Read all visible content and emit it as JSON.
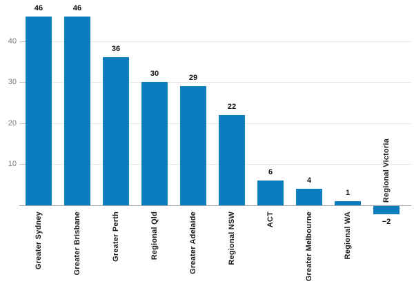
{
  "chart_data": {
    "type": "bar",
    "categories": [
      "Greater Sydney",
      "Greater Brisbane",
      "Greater Perth",
      "Regional Qld",
      "Greater Adelaide",
      "Regional NSW",
      "ACT",
      "Greater Melbourne",
      "Regional WA",
      "Regional Victoria"
    ],
    "values": [
      46,
      46,
      36,
      30,
      29,
      22,
      6,
      4,
      1,
      -2
    ],
    "bar_labels": [
      "46",
      "46",
      "36",
      "30",
      "29",
      "22",
      "6",
      "4",
      "1",
      "−2"
    ],
    "yticks": [
      "10",
      "20",
      "30",
      "40"
    ],
    "ytick_values": [
      10,
      20,
      30,
      40
    ],
    "ylim": [
      -5,
      50
    ],
    "grid": true,
    "legend": false,
    "xlabel": "",
    "ylabel": "",
    "bar_color": "#0b7dbe",
    "colors": {
      "grid_line": "#e7e7e7",
      "axis_line": "#a6a6a6",
      "tick_mark": "#c2c2c2",
      "ytick_label": "#7a7a7a",
      "value_label": "#111111",
      "category_label": "#1a1a1a",
      "background": "#ffffff"
    }
  }
}
